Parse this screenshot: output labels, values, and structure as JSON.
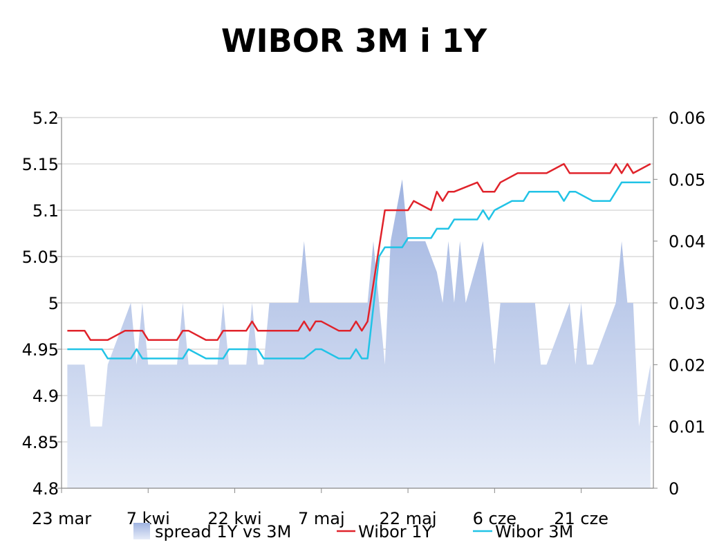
{
  "chart_data": {
    "type": "line",
    "title": "WIBOR 3M i 1Y",
    "x_tick_labels": [
      "23 mar",
      "7 kwi",
      "22 kwi",
      "7 maj",
      "22 maj",
      "6 cze",
      "21 cze"
    ],
    "y_left": {
      "min": 4.8,
      "max": 5.2,
      "ticks": [
        "5.2",
        "5.15",
        "5.1",
        "5.05",
        "5",
        "4.95",
        "4.9",
        "4.85",
        "4.8"
      ]
    },
    "y_right": {
      "min": 0,
      "max": 0.06,
      "ticks": [
        "0.06",
        "0.05",
        "0.04",
        "0.03",
        "0.02",
        "0.01",
        "0"
      ]
    },
    "grid": true,
    "legend_position": "bottom",
    "x_start_label": "23 mar",
    "x_end_label": "21 cze",
    "series": [
      {
        "name": "spread 1Y vs 3M",
        "kind": "area",
        "axis": "right",
        "color": "#aebfe3",
        "points": [
          [
            1,
            0.02
          ],
          [
            4,
            0.02
          ],
          [
            5,
            0.01
          ],
          [
            7,
            0.01
          ],
          [
            8,
            0.02
          ],
          [
            10,
            0.025
          ],
          [
            12,
            0.03
          ],
          [
            13,
            0.02
          ],
          [
            14,
            0.03
          ],
          [
            15,
            0.02
          ],
          [
            20,
            0.02
          ],
          [
            21,
            0.03
          ],
          [
            22,
            0.02
          ],
          [
            27,
            0.02
          ],
          [
            28,
            0.03
          ],
          [
            29,
            0.02
          ],
          [
            32,
            0.02
          ],
          [
            33,
            0.03
          ],
          [
            34,
            0.02
          ],
          [
            35,
            0.02
          ],
          [
            36,
            0.03
          ],
          [
            41,
            0.03
          ],
          [
            42,
            0.04
          ],
          [
            43,
            0.03
          ],
          [
            47,
            0.03
          ],
          [
            48,
            0.03
          ],
          [
            50,
            0.03
          ],
          [
            51,
            0.03
          ],
          [
            52,
            0.03
          ],
          [
            53,
            0.03
          ],
          [
            54,
            0.04
          ],
          [
            55,
            0.03
          ],
          [
            56,
            0.02
          ],
          [
            57,
            0.04
          ],
          [
            59,
            0.05
          ],
          [
            60,
            0.04
          ],
          [
            63,
            0.04
          ],
          [
            65,
            0.035
          ],
          [
            66,
            0.03
          ],
          [
            67,
            0.04
          ],
          [
            68,
            0.03
          ],
          [
            69,
            0.04
          ],
          [
            70,
            0.03
          ],
          [
            73,
            0.04
          ],
          [
            74,
            0.03
          ],
          [
            75,
            0.02
          ],
          [
            76,
            0.03
          ],
          [
            82,
            0.03
          ],
          [
            83,
            0.02
          ],
          [
            84,
            0.02
          ],
          [
            88,
            0.03
          ],
          [
            89,
            0.02
          ],
          [
            90,
            0.03
          ],
          [
            91,
            0.02
          ],
          [
            92,
            0.02
          ],
          [
            96,
            0.03
          ],
          [
            97,
            0.04
          ],
          [
            98,
            0.03
          ],
          [
            99,
            0.03
          ],
          [
            100,
            0.01
          ],
          [
            102,
            0.02
          ]
        ]
      },
      {
        "name": "Wibor 1Y",
        "kind": "line",
        "axis": "left",
        "color": "#e0232b",
        "points": [
          [
            1,
            4.97
          ],
          [
            4,
            4.97
          ],
          [
            5,
            4.96
          ],
          [
            8,
            4.96
          ],
          [
            11,
            4.97
          ],
          [
            14,
            4.97
          ],
          [
            15,
            4.96
          ],
          [
            20,
            4.96
          ],
          [
            21,
            4.97
          ],
          [
            22,
            4.97
          ],
          [
            25,
            4.96
          ],
          [
            27,
            4.96
          ],
          [
            28,
            4.97
          ],
          [
            32,
            4.97
          ],
          [
            33,
            4.98
          ],
          [
            34,
            4.97
          ],
          [
            41,
            4.97
          ],
          [
            42,
            4.98
          ],
          [
            43,
            4.97
          ],
          [
            44,
            4.98
          ],
          [
            45,
            4.98
          ],
          [
            48,
            4.97
          ],
          [
            50,
            4.97
          ],
          [
            51,
            4.98
          ],
          [
            52,
            4.97
          ],
          [
            53,
            4.98
          ],
          [
            56,
            5.1
          ],
          [
            60,
            5.1
          ],
          [
            61,
            5.11
          ],
          [
            64,
            5.1
          ],
          [
            65,
            5.12
          ],
          [
            66,
            5.11
          ],
          [
            67,
            5.12
          ],
          [
            68,
            5.12
          ],
          [
            72,
            5.13
          ],
          [
            73,
            5.12
          ],
          [
            75,
            5.12
          ],
          [
            76,
            5.13
          ],
          [
            79,
            5.14
          ],
          [
            84,
            5.14
          ],
          [
            87,
            5.15
          ],
          [
            88,
            5.14
          ],
          [
            95,
            5.14
          ],
          [
            96,
            5.15
          ],
          [
            97,
            5.14
          ],
          [
            98,
            5.15
          ],
          [
            99,
            5.14
          ],
          [
            102,
            5.15
          ]
        ]
      },
      {
        "name": "Wibor 3M",
        "kind": "line",
        "axis": "left",
        "color": "#21c3e6",
        "points": [
          [
            1,
            4.95
          ],
          [
            7,
            4.95
          ],
          [
            8,
            4.94
          ],
          [
            12,
            4.94
          ],
          [
            13,
            4.95
          ],
          [
            14,
            4.94
          ],
          [
            21,
            4.94
          ],
          [
            22,
            4.95
          ],
          [
            25,
            4.94
          ],
          [
            28,
            4.94
          ],
          [
            29,
            4.95
          ],
          [
            34,
            4.95
          ],
          [
            35,
            4.94
          ],
          [
            42,
            4.94
          ],
          [
            44,
            4.95
          ],
          [
            45,
            4.95
          ],
          [
            48,
            4.94
          ],
          [
            50,
            4.94
          ],
          [
            51,
            4.95
          ],
          [
            52,
            4.94
          ],
          [
            53,
            4.94
          ],
          [
            55,
            5.05
          ],
          [
            56,
            5.06
          ],
          [
            59,
            5.06
          ],
          [
            60,
            5.07
          ],
          [
            64,
            5.07
          ],
          [
            65,
            5.08
          ],
          [
            67,
            5.08
          ],
          [
            68,
            5.09
          ],
          [
            72,
            5.09
          ],
          [
            73,
            5.1
          ],
          [
            74,
            5.09
          ],
          [
            75,
            5.1
          ],
          [
            78,
            5.11
          ],
          [
            80,
            5.11
          ],
          [
            81,
            5.12
          ],
          [
            86,
            5.12
          ],
          [
            87,
            5.11
          ],
          [
            88,
            5.12
          ],
          [
            89,
            5.12
          ],
          [
            92,
            5.11
          ],
          [
            95,
            5.11
          ],
          [
            97,
            5.13
          ],
          [
            102,
            5.13
          ]
        ]
      }
    ]
  }
}
